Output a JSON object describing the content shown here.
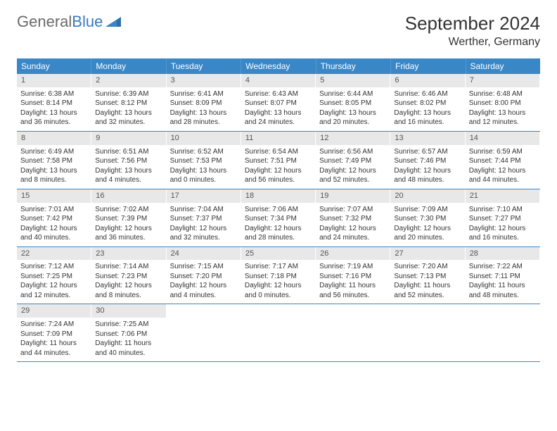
{
  "logo": {
    "general": "General",
    "blue": "Blue"
  },
  "title": "September 2024",
  "location": "Werther, Germany",
  "weekdays": [
    "Sunday",
    "Monday",
    "Tuesday",
    "Wednesday",
    "Thursday",
    "Friday",
    "Saturday"
  ],
  "colors": {
    "header_bg": "#3a87c7",
    "header_text": "#ffffff",
    "daynum_bg": "#e8e8e8",
    "border": "#3a87c7",
    "logo_gray": "#6a6a6a",
    "logo_blue": "#3a7bbf"
  },
  "days": [
    {
      "n": "1",
      "sunrise": "Sunrise: 6:38 AM",
      "sunset": "Sunset: 8:14 PM",
      "daylight": "Daylight: 13 hours and 36 minutes."
    },
    {
      "n": "2",
      "sunrise": "Sunrise: 6:39 AM",
      "sunset": "Sunset: 8:12 PM",
      "daylight": "Daylight: 13 hours and 32 minutes."
    },
    {
      "n": "3",
      "sunrise": "Sunrise: 6:41 AM",
      "sunset": "Sunset: 8:09 PM",
      "daylight": "Daylight: 13 hours and 28 minutes."
    },
    {
      "n": "4",
      "sunrise": "Sunrise: 6:43 AM",
      "sunset": "Sunset: 8:07 PM",
      "daylight": "Daylight: 13 hours and 24 minutes."
    },
    {
      "n": "5",
      "sunrise": "Sunrise: 6:44 AM",
      "sunset": "Sunset: 8:05 PM",
      "daylight": "Daylight: 13 hours and 20 minutes."
    },
    {
      "n": "6",
      "sunrise": "Sunrise: 6:46 AM",
      "sunset": "Sunset: 8:02 PM",
      "daylight": "Daylight: 13 hours and 16 minutes."
    },
    {
      "n": "7",
      "sunrise": "Sunrise: 6:48 AM",
      "sunset": "Sunset: 8:00 PM",
      "daylight": "Daylight: 13 hours and 12 minutes."
    },
    {
      "n": "8",
      "sunrise": "Sunrise: 6:49 AM",
      "sunset": "Sunset: 7:58 PM",
      "daylight": "Daylight: 13 hours and 8 minutes."
    },
    {
      "n": "9",
      "sunrise": "Sunrise: 6:51 AM",
      "sunset": "Sunset: 7:56 PM",
      "daylight": "Daylight: 13 hours and 4 minutes."
    },
    {
      "n": "10",
      "sunrise": "Sunrise: 6:52 AM",
      "sunset": "Sunset: 7:53 PM",
      "daylight": "Daylight: 13 hours and 0 minutes."
    },
    {
      "n": "11",
      "sunrise": "Sunrise: 6:54 AM",
      "sunset": "Sunset: 7:51 PM",
      "daylight": "Daylight: 12 hours and 56 minutes."
    },
    {
      "n": "12",
      "sunrise": "Sunrise: 6:56 AM",
      "sunset": "Sunset: 7:49 PM",
      "daylight": "Daylight: 12 hours and 52 minutes."
    },
    {
      "n": "13",
      "sunrise": "Sunrise: 6:57 AM",
      "sunset": "Sunset: 7:46 PM",
      "daylight": "Daylight: 12 hours and 48 minutes."
    },
    {
      "n": "14",
      "sunrise": "Sunrise: 6:59 AM",
      "sunset": "Sunset: 7:44 PM",
      "daylight": "Daylight: 12 hours and 44 minutes."
    },
    {
      "n": "15",
      "sunrise": "Sunrise: 7:01 AM",
      "sunset": "Sunset: 7:42 PM",
      "daylight": "Daylight: 12 hours and 40 minutes."
    },
    {
      "n": "16",
      "sunrise": "Sunrise: 7:02 AM",
      "sunset": "Sunset: 7:39 PM",
      "daylight": "Daylight: 12 hours and 36 minutes."
    },
    {
      "n": "17",
      "sunrise": "Sunrise: 7:04 AM",
      "sunset": "Sunset: 7:37 PM",
      "daylight": "Daylight: 12 hours and 32 minutes."
    },
    {
      "n": "18",
      "sunrise": "Sunrise: 7:06 AM",
      "sunset": "Sunset: 7:34 PM",
      "daylight": "Daylight: 12 hours and 28 minutes."
    },
    {
      "n": "19",
      "sunrise": "Sunrise: 7:07 AM",
      "sunset": "Sunset: 7:32 PM",
      "daylight": "Daylight: 12 hours and 24 minutes."
    },
    {
      "n": "20",
      "sunrise": "Sunrise: 7:09 AM",
      "sunset": "Sunset: 7:30 PM",
      "daylight": "Daylight: 12 hours and 20 minutes."
    },
    {
      "n": "21",
      "sunrise": "Sunrise: 7:10 AM",
      "sunset": "Sunset: 7:27 PM",
      "daylight": "Daylight: 12 hours and 16 minutes."
    },
    {
      "n": "22",
      "sunrise": "Sunrise: 7:12 AM",
      "sunset": "Sunset: 7:25 PM",
      "daylight": "Daylight: 12 hours and 12 minutes."
    },
    {
      "n": "23",
      "sunrise": "Sunrise: 7:14 AM",
      "sunset": "Sunset: 7:23 PM",
      "daylight": "Daylight: 12 hours and 8 minutes."
    },
    {
      "n": "24",
      "sunrise": "Sunrise: 7:15 AM",
      "sunset": "Sunset: 7:20 PM",
      "daylight": "Daylight: 12 hours and 4 minutes."
    },
    {
      "n": "25",
      "sunrise": "Sunrise: 7:17 AM",
      "sunset": "Sunset: 7:18 PM",
      "daylight": "Daylight: 12 hours and 0 minutes."
    },
    {
      "n": "26",
      "sunrise": "Sunrise: 7:19 AM",
      "sunset": "Sunset: 7:16 PM",
      "daylight": "Daylight: 11 hours and 56 minutes."
    },
    {
      "n": "27",
      "sunrise": "Sunrise: 7:20 AM",
      "sunset": "Sunset: 7:13 PM",
      "daylight": "Daylight: 11 hours and 52 minutes."
    },
    {
      "n": "28",
      "sunrise": "Sunrise: 7:22 AM",
      "sunset": "Sunset: 7:11 PM",
      "daylight": "Daylight: 11 hours and 48 minutes."
    },
    {
      "n": "29",
      "sunrise": "Sunrise: 7:24 AM",
      "sunset": "Sunset: 7:09 PM",
      "daylight": "Daylight: 11 hours and 44 minutes."
    },
    {
      "n": "30",
      "sunrise": "Sunrise: 7:25 AM",
      "sunset": "Sunset: 7:06 PM",
      "daylight": "Daylight: 11 hours and 40 minutes."
    }
  ]
}
